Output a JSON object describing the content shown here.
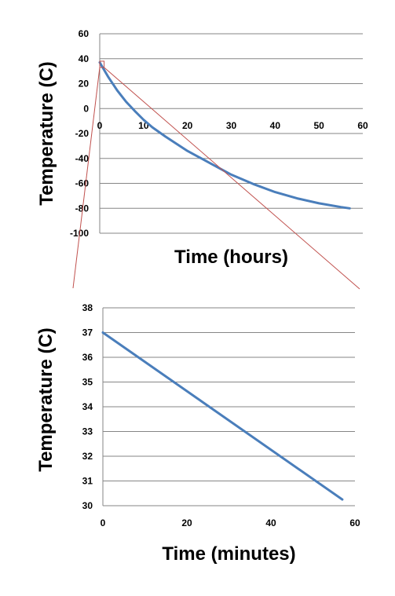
{
  "chart_data": [
    {
      "type": "line",
      "xlabel": "Time (hours)",
      "ylabel": "Temperature (C)",
      "xlim": [
        0,
        60
      ],
      "ylim": [
        -100,
        60
      ],
      "x_ticks": [
        0,
        10,
        20,
        30,
        40,
        50,
        60
      ],
      "y_ticks": [
        -100,
        -80,
        -60,
        -40,
        -20,
        0,
        20,
        40,
        60
      ],
      "grid": "horizontal",
      "legend": "none",
      "series": [
        {
          "color": "#4a7ebb",
          "points": [
            [
              0,
              37
            ],
            [
              2,
              25
            ],
            [
              4,
              14.5
            ],
            [
              6,
              5.5
            ],
            [
              8,
              -2
            ],
            [
              10,
              -9
            ],
            [
              12,
              -15
            ],
            [
              15,
              -22.5
            ],
            [
              20,
              -34
            ],
            [
              25,
              -43.5
            ],
            [
              30,
              -53
            ],
            [
              35,
              -60.5
            ],
            [
              40,
              -67
            ],
            [
              45,
              -72
            ],
            [
              50,
              -76
            ],
            [
              55,
              -79
            ],
            [
              57,
              -80
            ]
          ]
        }
      ],
      "zoom_marker": {
        "x": [
          0,
          1
        ],
        "y": [
          33,
          38
        ],
        "color": "#c0504d"
      }
    },
    {
      "type": "line",
      "xlabel": "Time (minutes)",
      "ylabel": "Temperature (C)",
      "xlim": [
        0,
        60
      ],
      "ylim": [
        30,
        38
      ],
      "x_ticks": [
        0,
        20,
        40,
        60
      ],
      "y_ticks": [
        30,
        31,
        32,
        33,
        34,
        35,
        36,
        37,
        38
      ],
      "grid": "horizontal",
      "legend": "none",
      "series": [
        {
          "color": "#4a7ebb",
          "points": [
            [
              0,
              37
            ],
            [
              57,
              30.25
            ]
          ]
        }
      ]
    }
  ]
}
